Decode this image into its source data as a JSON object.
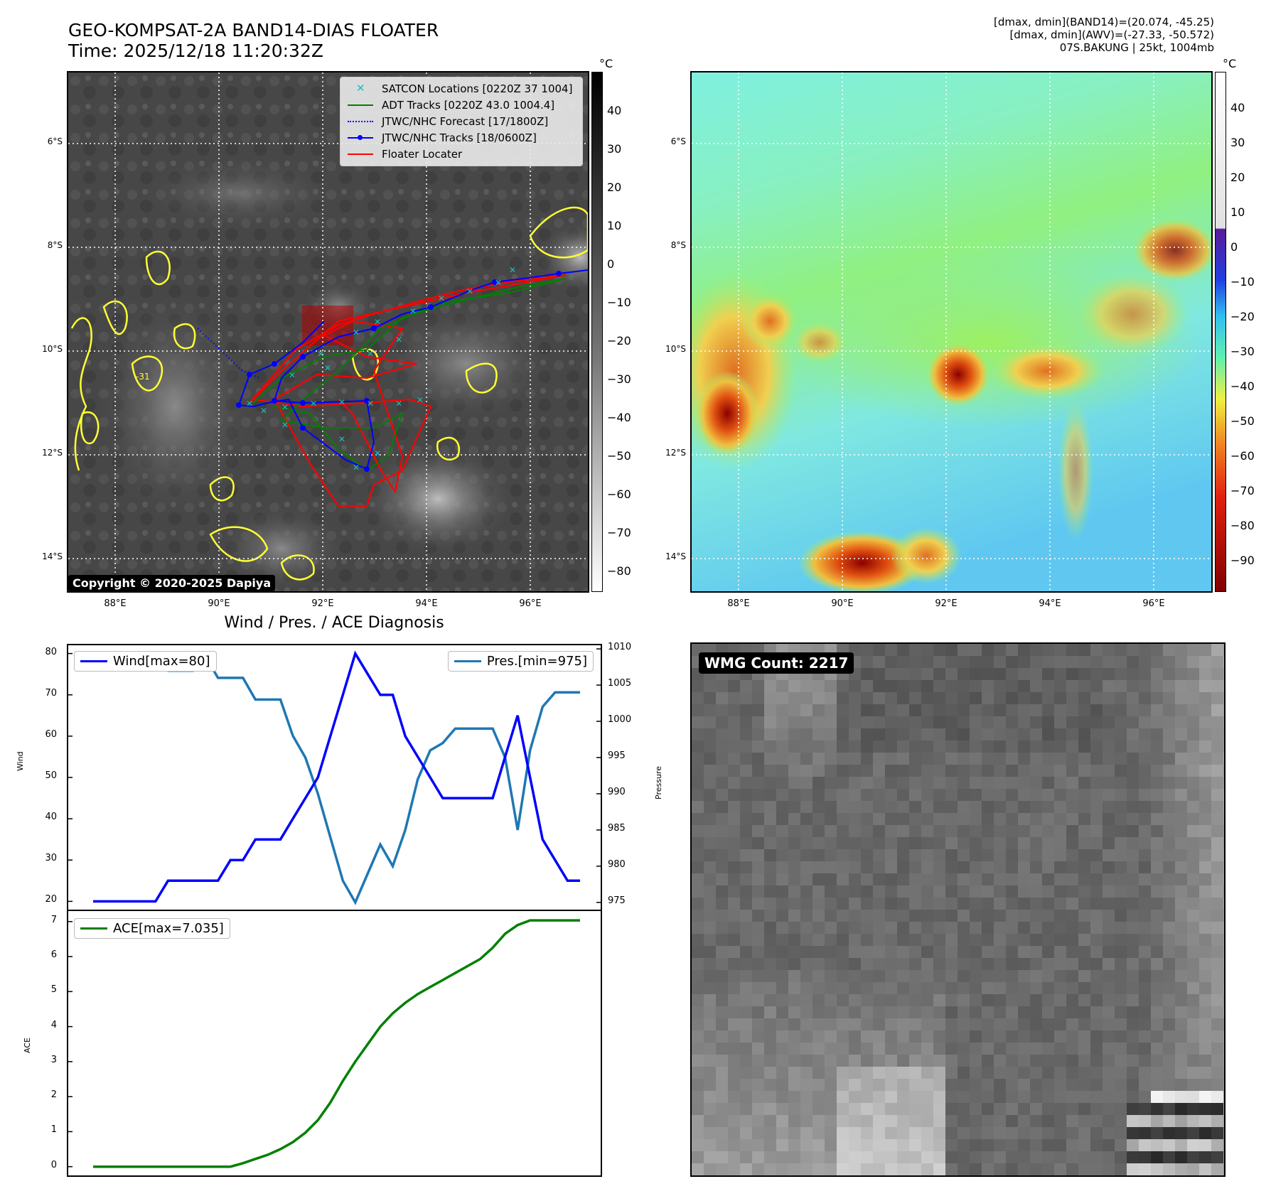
{
  "header": {
    "title_line1": "GEO-KOMPSAT-2A BAND14-DIAS FLOATER",
    "title_line2": "Time: 2025/12/18 11:20:32Z",
    "info_line1": "[dmax, dmin](BAND14)=(20.074, -45.25)",
    "info_line2": "[dmax, dmin](AWV)=(-27.33, -50.572)",
    "info_line3": "07S.BAKUNG | 25kt, 1004mb"
  },
  "maps": {
    "lat_labels": [
      "6°S",
      "8°S",
      "10°S",
      "12°S",
      "14°S"
    ],
    "lon_labels": [
      "88°E",
      "90°E",
      "92°E",
      "94°E",
      "96°E"
    ],
    "copyright": "Copyright © 2020-2025 Dapiya",
    "contour_label": "-31"
  },
  "colorbar_left": {
    "unit": "°C",
    "ticks": [
      "40",
      "30",
      "20",
      "10",
      "0",
      "−10",
      "−20",
      "−30",
      "−40",
      "−50",
      "−60",
      "−70",
      "−80"
    ]
  },
  "colorbar_right": {
    "unit": "°C",
    "ticks": [
      "40",
      "30",
      "20",
      "10",
      "0",
      "−10",
      "−20",
      "−30",
      "−40",
      "−50",
      "−60",
      "−70",
      "−80",
      "−90"
    ]
  },
  "legend": {
    "satcon": "SATCON Locations [0220Z 37 1004]",
    "adt": "ADT Tracks [0220Z 43.0 1004.4]",
    "forecast": "JTWC/NHC Forecast [17/1800Z]",
    "tracks": "JTWC/NHC Tracks [18/0600Z]",
    "floater": "Floater Locater"
  },
  "colors": {
    "satcon": "#17bfbf",
    "adt": "#008000",
    "jtwc": "#0000ff",
    "floater": "#ff0000",
    "wind": "#0000ff",
    "pres": "#1f77b4",
    "ace": "#008000",
    "contour": "#ffff33"
  },
  "diagnosis": {
    "title": "Wind / Pres. / ACE Diagnosis",
    "wind_ylabel": "Wind",
    "pres_ylabel": "Pressure",
    "ace_ylabel": "ACE",
    "wind_legend": "Wind[max=80]",
    "pres_legend": "Pres.[min=975]",
    "ace_legend": "ACE[max=7.035]",
    "wind_ticks": [
      "80",
      "70",
      "60",
      "50",
      "40",
      "30",
      "20"
    ],
    "pres_ticks": [
      "1010",
      "1005",
      "1000",
      "995",
      "990",
      "985",
      "980",
      "975"
    ],
    "ace_ticks": [
      "7",
      "6",
      "5",
      "4",
      "3",
      "2",
      "1",
      "0"
    ]
  },
  "wmg": {
    "label": "WMG Count: 2217"
  },
  "chart_data": [
    {
      "type": "line",
      "title": "Wind / Pres. / ACE Diagnosis",
      "xlabel": "",
      "ylabel": "Wind",
      "ylim": [
        18,
        82
      ],
      "series": [
        {
          "name": "Wind[max=80]",
          "axis": "left",
          "values": [
            20,
            20,
            20,
            20,
            20,
            20,
            25,
            25,
            25,
            25,
            25,
            30,
            30,
            35,
            35,
            35,
            40,
            45,
            50,
            60,
            70,
            80,
            75,
            70,
            70,
            60,
            55,
            50,
            45,
            45,
            45,
            45,
            45,
            55,
            65,
            50,
            35,
            30,
            25,
            25
          ]
        },
        {
          "name": "Pres.[min=975]",
          "axis": "right",
          "ylabel": "Pressure",
          "ylim": [
            974,
            1010.5
          ],
          "values": [
            1008,
            1008,
            1008,
            1008,
            1008,
            1008,
            1007,
            1007,
            1007,
            1009,
            1006,
            1006,
            1006,
            1003,
            1003,
            1003,
            998,
            995,
            990,
            984,
            978,
            975,
            979,
            983,
            980,
            985,
            992,
            996,
            997,
            999,
            999,
            999,
            999,
            995,
            985,
            996,
            1002,
            1004,
            1004,
            1004
          ]
        }
      ]
    },
    {
      "type": "line",
      "xlabel": "",
      "ylabel": "ACE",
      "ylim": [
        -0.25,
        7.3
      ],
      "series": [
        {
          "name": "ACE[max=7.035]",
          "values": [
            0,
            0,
            0,
            0,
            0,
            0,
            0,
            0,
            0,
            0,
            0,
            0,
            0.1,
            0.22,
            0.34,
            0.5,
            0.7,
            0.97,
            1.33,
            1.83,
            2.45,
            3.0,
            3.5,
            4.0,
            4.38,
            4.68,
            4.93,
            5.13,
            5.33,
            5.53,
            5.73,
            5.93,
            6.25,
            6.65,
            6.9,
            7.035,
            7.035,
            7.035,
            7.035,
            7.035
          ]
        }
      ]
    }
  ]
}
